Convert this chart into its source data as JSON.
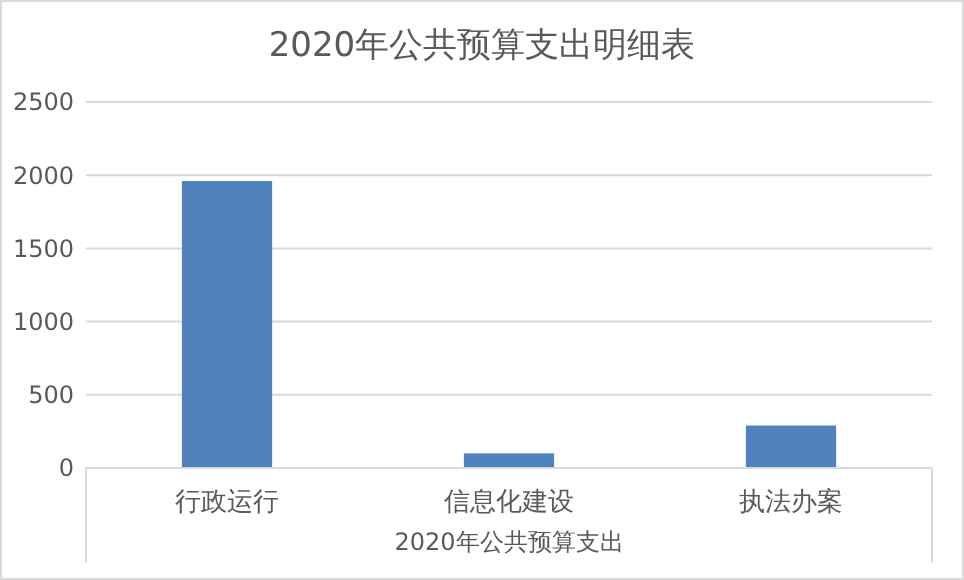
{
  "chart_data": {
    "type": "bar",
    "title": "2020年公共预算支出明细表",
    "xlabel": "2020年公共预算支出",
    "categories": [
      "行政运行",
      "信息化建设",
      "执法办案"
    ],
    "values": [
      1960,
      100,
      290
    ],
    "color": "#4f81bd",
    "ylim": [
      0,
      2500
    ],
    "yticks": [
      0,
      500,
      1000,
      1500,
      2000,
      2500
    ],
    "grid": "y"
  }
}
